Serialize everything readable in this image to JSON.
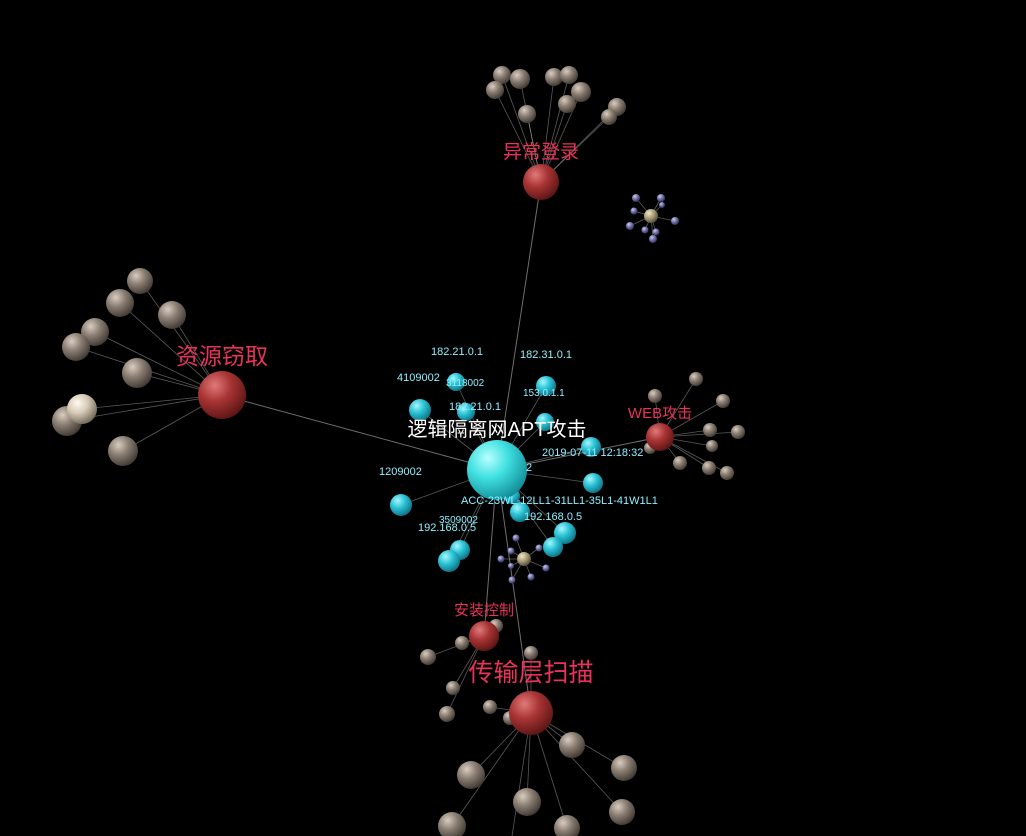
{
  "graph": {
    "center_label": "逻辑隔离网APT攻击",
    "categories": [
      {
        "key": "abnormal-login",
        "label": "异常登录"
      },
      {
        "key": "resource-theft",
        "label": "资源窃取"
      },
      {
        "key": "web-attack",
        "label": "WEB攻击"
      },
      {
        "key": "install-control",
        "label": "安装控制"
      },
      {
        "key": "transport-scan",
        "label": "传输层扫描"
      }
    ],
    "ioc_labels": [
      {
        "key": "ip-182-21-a",
        "text": "182.21.0.1"
      },
      {
        "key": "ip-182-31",
        "text": "182.31.0.1"
      },
      {
        "key": "id-4109002",
        "text": "4109002"
      },
      {
        "key": "id-3118002",
        "text": "3118002"
      },
      {
        "key": "ip-153",
        "text": "153.0.1.1"
      },
      {
        "key": "ip-182-21-b",
        "text": "182.21.0.1"
      },
      {
        "key": "timestamp",
        "text": "2019-07-11 12:18:32"
      },
      {
        "key": "id-1209002",
        "text": "1209002"
      },
      {
        "key": "frag-2",
        "text": "2"
      },
      {
        "key": "acc-code",
        "text": "ACC-23WL-12LL1-31LL1-35L1-41W1L1"
      },
      {
        "key": "id-3509002",
        "text": "3509002"
      },
      {
        "key": "ip-192-a",
        "text": "192.168.0.5"
      },
      {
        "key": "ip-192-b",
        "text": "192.168.0.5"
      }
    ]
  },
  "colors": {
    "background": "#000000",
    "center_node": "#3fe0e0",
    "ioc_node": "#2bc4d6",
    "category_node": "#a83434",
    "leaf_node": "#a89a8c",
    "satellite_node": "#7f7fb0",
    "category_label": "#e8335a",
    "ioc_label": "#8ff0ff",
    "center_label": "#ffffff"
  }
}
